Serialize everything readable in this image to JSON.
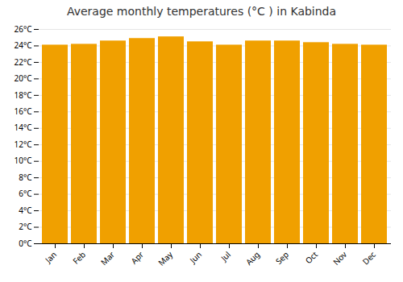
{
  "chart_data": {
    "type": "bar",
    "title": "Average monthly temperatures (°C ) in Kabinda",
    "categories": [
      "Jan",
      "Feb",
      "Mar",
      "Apr",
      "May",
      "Jun",
      "Jul",
      "Aug",
      "Sep",
      "Oct",
      "Nov",
      "Dec"
    ],
    "values": [
      24.1,
      24.2,
      24.6,
      24.9,
      25.1,
      24.5,
      24.1,
      24.6,
      24.6,
      24.4,
      24.2,
      24.1
    ],
    "color": "#F0A000",
    "ylim": [
      0,
      26
    ],
    "yticks": [
      {
        "value": 0,
        "label": "0°C"
      },
      {
        "value": 2,
        "label": "2°C"
      },
      {
        "value": 4,
        "label": "4°C"
      },
      {
        "value": 6,
        "label": "6°C"
      },
      {
        "value": 8,
        "label": "8°C"
      },
      {
        "value": 10,
        "label": "10°C"
      },
      {
        "value": 12,
        "label": "12°C"
      },
      {
        "value": 14,
        "label": "14°C"
      },
      {
        "value": 16,
        "label": "16°C"
      },
      {
        "value": 18,
        "label": "18°C"
      },
      {
        "value": 20,
        "label": "20°C"
      },
      {
        "value": 22,
        "label": "22°C"
      },
      {
        "value": 24,
        "label": "24°C"
      },
      {
        "value": 26,
        "label": "26°C"
      }
    ],
    "grid": true
  }
}
